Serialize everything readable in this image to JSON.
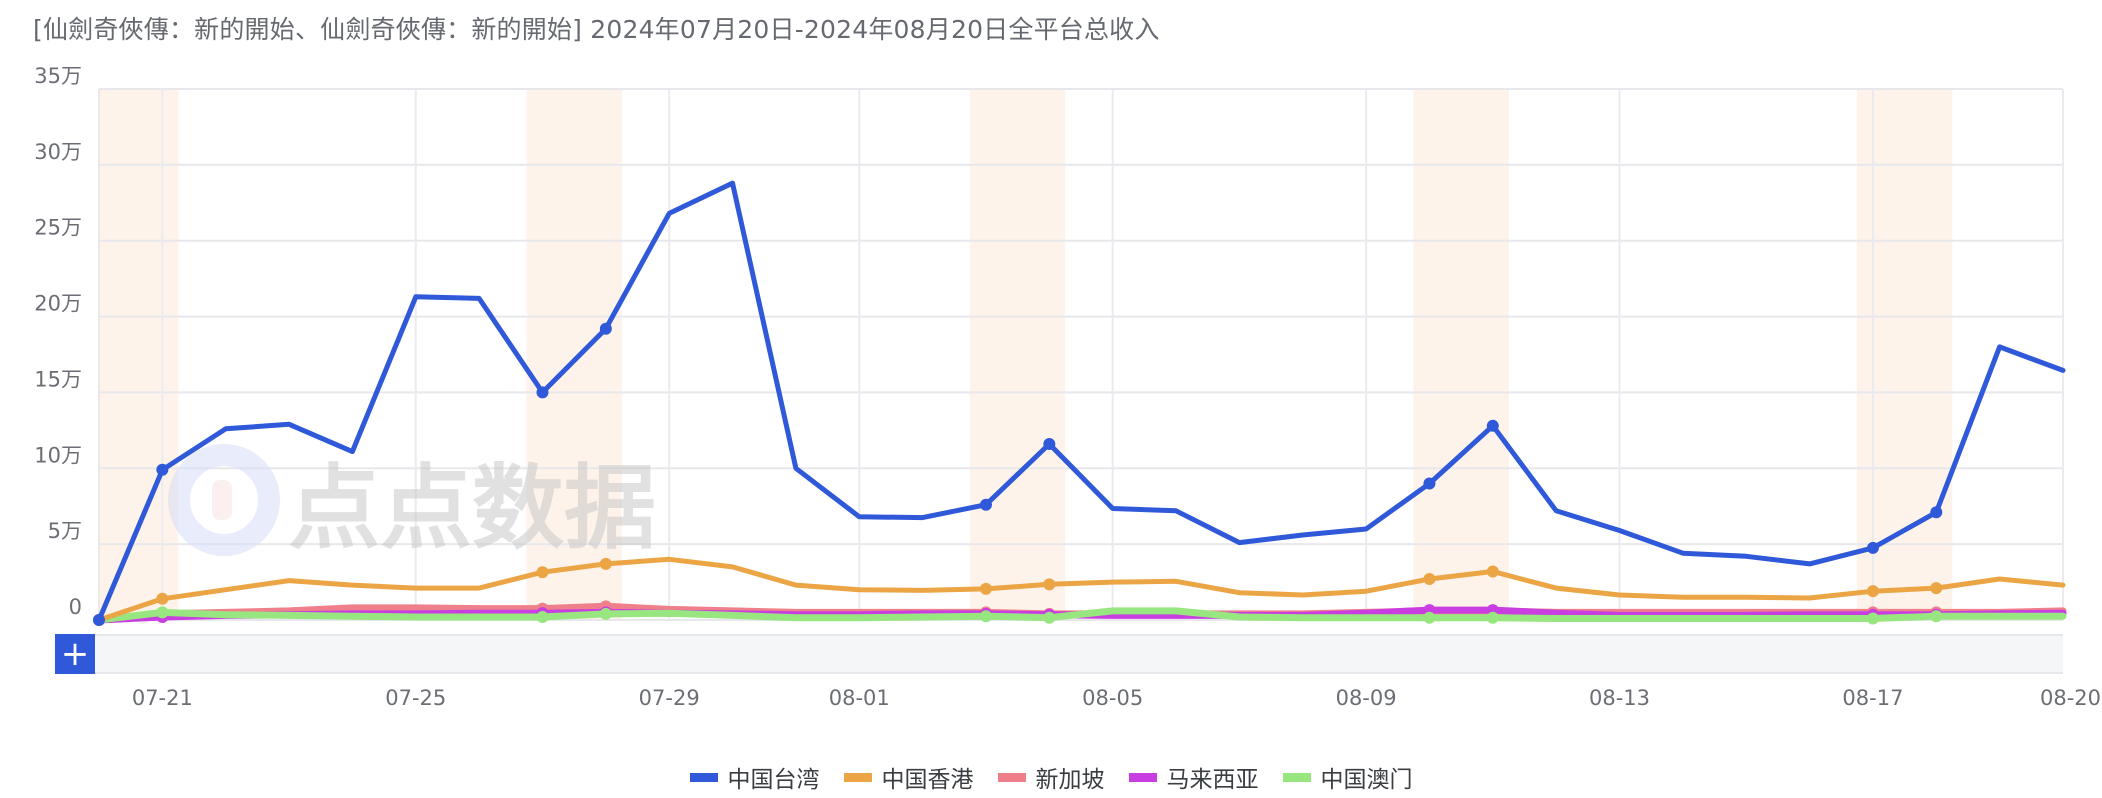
{
  "title": "[仙劍奇俠傳：新的開始、仙劍奇俠傳：新的開始] 2024年07月20日-2024年08月20日全平台总收入",
  "zoom_button_label": "+",
  "watermark": "点点数据",
  "chart_data": {
    "type": "line",
    "title": "[仙劍奇俠傳：新的開始、仙劍奇俠傳：新的開始] 2024年07月20日-2024年08月20日全平台总收入",
    "xlabel": "",
    "ylabel": "",
    "unit": "万",
    "ylim": [
      0,
      350000
    ],
    "y_ticks": [
      "0",
      "5万",
      "10万",
      "15万",
      "20万",
      "25万",
      "30万",
      "35万"
    ],
    "x_tick_labels": [
      "07-21",
      "07-25",
      "07-29",
      "08-01",
      "08-05",
      "08-09",
      "08-13",
      "08-17",
      "08-20"
    ],
    "grid": true,
    "legend_position": "bottom",
    "weekend_bands": [
      [
        "07-20",
        "07-21"
      ],
      [
        "07-27",
        "07-28"
      ],
      [
        "08-03",
        "08-04"
      ],
      [
        "08-10",
        "08-11"
      ],
      [
        "08-17",
        "08-18"
      ]
    ],
    "categories": [
      "07-20",
      "07-21",
      "07-22",
      "07-23",
      "07-24",
      "07-25",
      "07-26",
      "07-27",
      "07-28",
      "07-29",
      "07-30",
      "07-31",
      "08-01",
      "08-02",
      "08-03",
      "08-04",
      "08-05",
      "08-06",
      "08-07",
      "08-08",
      "08-09",
      "08-10",
      "08-11",
      "08-12",
      "08-13",
      "08-14",
      "08-15",
      "08-16",
      "08-17",
      "08-18",
      "08-19",
      "08-20"
    ],
    "series": [
      {
        "name": "中国台湾",
        "color": "#2f59d9",
        "values": [
          0,
          99000,
          126000,
          129000,
          111000,
          213000,
          212000,
          150000,
          192000,
          268000,
          288000,
          100000,
          68000,
          67500,
          76000,
          116000,
          73500,
          72000,
          51000,
          56000,
          60000,
          90000,
          128000,
          72000,
          59000,
          44000,
          42000,
          37000,
          47500,
          71000,
          180000,
          164500
        ]
      },
      {
        "name": "中国香港",
        "color": "#eba545",
        "values": [
          0,
          14000,
          20000,
          26000,
          23000,
          21000,
          21000,
          31500,
          37000,
          40000,
          35000,
          23000,
          20000,
          19500,
          20500,
          23500,
          25000,
          25500,
          18000,
          16500,
          19000,
          27000,
          32000,
          21000,
          16500,
          15000,
          15000,
          14500,
          19000,
          21000,
          27000,
          23000
        ]
      },
      {
        "name": "新加坡",
        "color": "#ef7f8a",
        "values": [
          0,
          4000,
          5000,
          6000,
          8000,
          8000,
          7500,
          7500,
          9000,
          7000,
          6000,
          5000,
          5000,
          5000,
          5000,
          4000,
          4000,
          4000,
          4000,
          4000,
          5000,
          6000,
          6000,
          5000,
          5000,
          5000,
          5000,
          5000,
          5000,
          5000,
          5000,
          6000
        ]
      },
      {
        "name": "马来西亚",
        "color": "#c93ee0",
        "values": [
          0,
          2000,
          3000,
          3500,
          4000,
          4000,
          4500,
          4500,
          5000,
          4500,
          4000,
          3500,
          3500,
          4000,
          4000,
          3500,
          3000,
          3000,
          3000,
          3000,
          4500,
          6500,
          6500,
          4500,
          3000,
          3000,
          3000,
          3500,
          3500,
          3500,
          4000,
          4500
        ]
      },
      {
        "name": "中国澳门",
        "color": "#97e67f",
        "values": [
          0,
          5000,
          3500,
          3000,
          2500,
          2000,
          2000,
          2000,
          4000,
          4500,
          3000,
          1500,
          1500,
          2000,
          2500,
          1500,
          6000,
          6000,
          2000,
          1500,
          1500,
          1500,
          1500,
          1000,
          1000,
          1000,
          1000,
          1000,
          1000,
          2500,
          2500,
          2500
        ]
      }
    ]
  },
  "legend": [
    {
      "label": "中国台湾",
      "color": "#2f59d9"
    },
    {
      "label": "中国香港",
      "color": "#eba545"
    },
    {
      "label": "新加坡",
      "color": "#ef7f8a"
    },
    {
      "label": "马来西亚",
      "color": "#c93ee0"
    },
    {
      "label": "中国澳门",
      "color": "#97e67f"
    }
  ]
}
